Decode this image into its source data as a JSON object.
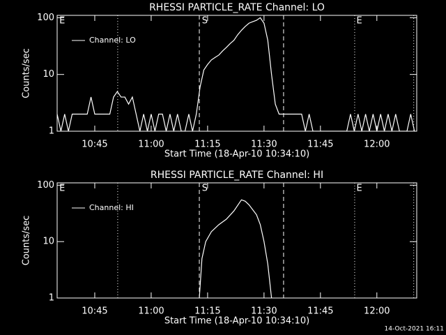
{
  "chart_data": [
    {
      "type": "line",
      "title": "RHESSI PARTICLE_RATE Channel: LO",
      "ylabel": "Counts/sec",
      "xlabel": "Start Time (18-Apr-10 10:34:10)",
      "log_y": true,
      "color": "#ffffff",
      "legend": "upper left",
      "xlim": [
        635,
        730.6
      ],
      "ylim": [
        1,
        110
      ],
      "xticks": [
        {
          "value": 645,
          "label": "10:45"
        },
        {
          "value": 660,
          "label": "11:00"
        },
        {
          "value": 675,
          "label": "11:15"
        },
        {
          "value": 690,
          "label": "11:30"
        },
        {
          "value": 705,
          "label": "11:45"
        },
        {
          "value": 720,
          "label": "12:00"
        }
      ],
      "yticks": [
        1,
        10,
        100
      ],
      "vlines": [
        {
          "x": 651.1,
          "style": "dotted"
        },
        {
          "x": 672.8,
          "style": "dashed"
        },
        {
          "x": 695.2,
          "style": "dashed"
        },
        {
          "x": 714.1,
          "style": "dotted"
        },
        {
          "x": 729.8,
          "style": "dotted"
        }
      ],
      "annotations": [
        {
          "text": "E",
          "x": 635.4
        },
        {
          "text": "S",
          "x": 673.3
        },
        {
          "text": "E",
          "x": 714.4
        }
      ],
      "x": [
        635,
        636,
        637,
        638,
        639,
        640,
        641,
        642,
        643,
        644,
        645,
        646,
        647,
        648,
        649,
        650,
        651,
        652,
        653,
        654,
        655,
        656,
        657,
        658,
        659,
        660,
        661,
        662,
        663,
        664,
        665,
        666,
        667,
        668,
        669,
        670,
        671,
        672,
        673,
        674,
        675,
        676,
        677,
        678,
        679,
        680,
        681,
        682,
        683,
        684,
        685,
        686,
        687,
        688,
        689,
        690,
        691,
        692,
        693,
        694,
        695,
        696,
        697,
        698,
        699,
        700,
        701,
        702,
        703,
        704,
        705,
        706,
        707,
        708,
        709,
        710,
        711,
        712,
        713,
        714,
        715,
        716,
        717,
        718,
        719,
        720,
        721,
        722,
        723,
        724,
        725,
        726,
        727,
        728,
        729,
        730
      ],
      "series": [
        {
          "name": "Channel: LO",
          "values": [
            2,
            1,
            2,
            1,
            2,
            2,
            2,
            2,
            2,
            4,
            2,
            2,
            2,
            2,
            2,
            4,
            5,
            4,
            4,
            3,
            4,
            2,
            1,
            2,
            1,
            2,
            1,
            2,
            2,
            1,
            2,
            1,
            2,
            1,
            1,
            2,
            1,
            2,
            6,
            12,
            15,
            18,
            20,
            22,
            26,
            30,
            35,
            40,
            50,
            60,
            70,
            80,
            85,
            90,
            100,
            80,
            40,
            10,
            3,
            2,
            2,
            2,
            2,
            2,
            2,
            2,
            1,
            2,
            1,
            1,
            1,
            1,
            1,
            1,
            1,
            1,
            1,
            1,
            2,
            1,
            2,
            1,
            2,
            1,
            2,
            1,
            2,
            1,
            2,
            1,
            2,
            1,
            1,
            1,
            2,
            1
          ]
        }
      ]
    },
    {
      "type": "line",
      "title": "RHESSI PARTICLE_RATE Channel: HI",
      "ylabel": "Counts/sec",
      "xlabel": "Start Time (18-Apr-10 10:34:10)",
      "log_y": true,
      "color": "#ffffff",
      "legend": "upper left",
      "xlim": [
        635,
        730.6
      ],
      "ylim": [
        1,
        110
      ],
      "xticks": [
        {
          "value": 645,
          "label": "10:45"
        },
        {
          "value": 660,
          "label": "11:00"
        },
        {
          "value": 675,
          "label": "11:15"
        },
        {
          "value": 690,
          "label": "11:30"
        },
        {
          "value": 705,
          "label": "11:45"
        },
        {
          "value": 720,
          "label": "12:00"
        }
      ],
      "yticks": [
        1,
        10,
        100
      ],
      "vlines": [
        {
          "x": 651.1,
          "style": "dotted"
        },
        {
          "x": 672.8,
          "style": "dashed"
        },
        {
          "x": 695.2,
          "style": "dashed"
        },
        {
          "x": 714.1,
          "style": "dotted"
        },
        {
          "x": 729.8,
          "style": "dotted"
        }
      ],
      "annotations": [
        {
          "text": "E",
          "x": 635.4
        },
        {
          "text": "S",
          "x": 673.3
        },
        {
          "text": "E",
          "x": 714.4
        }
      ],
      "x": [
        672.8,
        673.5,
        674.5,
        676,
        678,
        680,
        682,
        684,
        685,
        686,
        688,
        689,
        690,
        691,
        692
      ],
      "series": [
        {
          "name": "Channel: HI",
          "values": [
            1,
            5,
            10,
            15,
            20,
            25,
            35,
            55,
            52,
            45,
            30,
            20,
            10,
            4,
            1
          ]
        }
      ]
    }
  ],
  "footer": "14-Oct-2021 16:11"
}
